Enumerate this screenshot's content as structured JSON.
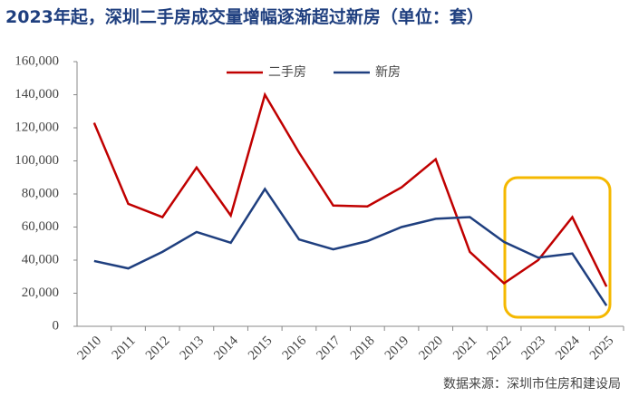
{
  "chart_data": {
    "type": "line",
    "title": "2023年起，深圳二手房成交量增幅逐渐超过新房（单位：套）",
    "source": "数据来源：深圳市住房和建设局",
    "categories": [
      "2010",
      "2011",
      "2012",
      "2013",
      "2014",
      "2015",
      "2016",
      "2017",
      "2018",
      "2019",
      "2020",
      "2021",
      "2022",
      "2023",
      "2024",
      "2025"
    ],
    "series": [
      {
        "name": "二手房",
        "color": "#c00000",
        "values": [
          123000,
          74000,
          66000,
          96000,
          67000,
          140000,
          105000,
          73000,
          72500,
          84000,
          101000,
          45000,
          26000,
          40000,
          66000,
          24000
        ]
      },
      {
        "name": "新房",
        "color": "#1f3f7f",
        "values": [
          39500,
          35000,
          45000,
          57000,
          50500,
          83000,
          52500,
          46500,
          51500,
          60000,
          65000,
          66000,
          51000,
          41500,
          44000,
          12500
        ]
      }
    ],
    "ylim": [
      0,
      160000
    ],
    "yticks": [
      0,
      {
        "value": 20000,
        "label": "20,000"
      },
      {
        "value": 40000,
        "label": "40,000"
      },
      {
        "value": 60000,
        "label": "60,000"
      },
      {
        "value": 80000,
        "label": "80,000"
      },
      {
        "value": 100000,
        "label": "100,000"
      },
      {
        "value": 120000,
        "label": "120,000"
      },
      {
        "value": 140000,
        "label": "140,000"
      },
      {
        "value": 160000,
        "label": "160,000"
      }
    ],
    "legend": "top"
  }
}
